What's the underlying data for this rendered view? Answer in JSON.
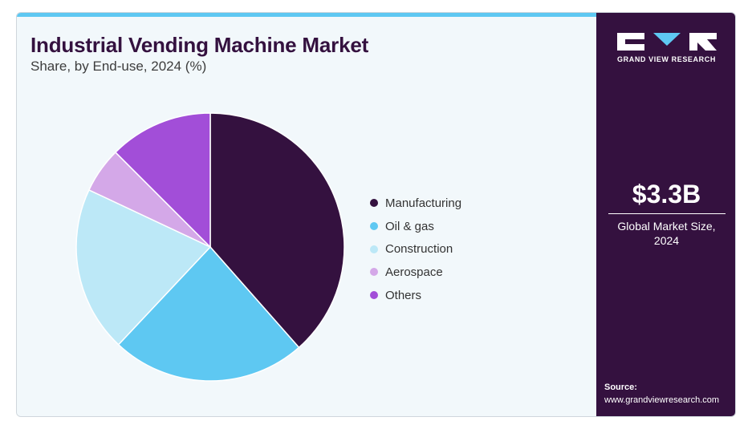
{
  "header": {
    "title": "Industrial Vending Machine Market",
    "subtitle": "Share, by End-use, 2024 (%)"
  },
  "chart_data": {
    "type": "pie",
    "title": "Industrial Vending Machine Market",
    "subtitle": "Share, by End-use, 2024 (%)",
    "categories": [
      "Manufacturing",
      "Oil & gas",
      "Construction",
      "Aerospace",
      "Others"
    ],
    "values": [
      38.5,
      23.5,
      20.0,
      5.5,
      12.5
    ],
    "colors": [
      "#34113f",
      "#5ec8f2",
      "#bce8f7",
      "#d4a8e8",
      "#a24ed8"
    ],
    "legend": "right"
  },
  "sidebar": {
    "logo_text": "GRAND VIEW RESEARCH",
    "market_value": "$3.3B",
    "market_label_line1": "Global Market Size,",
    "market_label_line2": "2024",
    "source_label": "Source:",
    "source_url": "www.grandviewresearch.com"
  }
}
